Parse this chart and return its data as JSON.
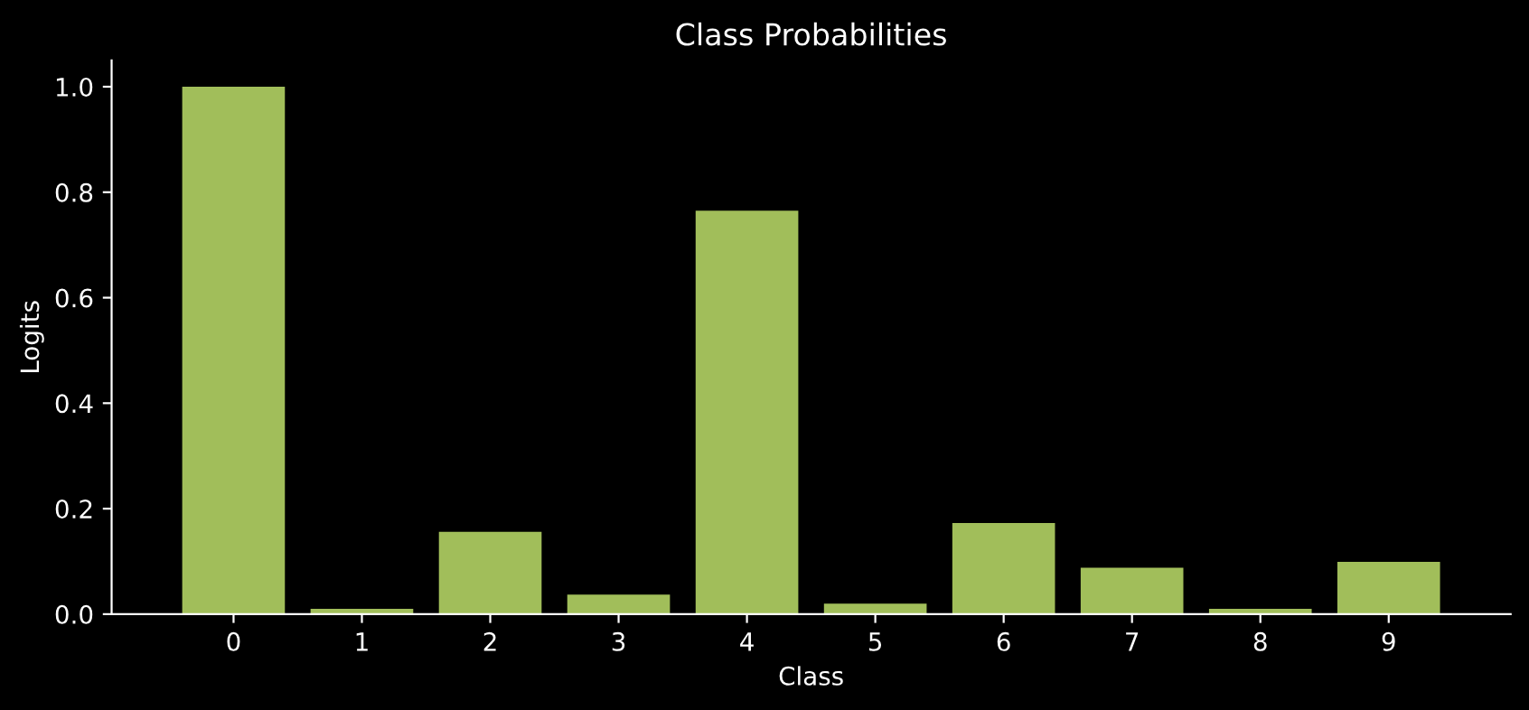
{
  "chart_data": {
    "type": "bar",
    "title": "Class Probabilities",
    "xlabel": "Class",
    "ylabel": "Logits",
    "categories": [
      "0",
      "1",
      "2",
      "3",
      "4",
      "5",
      "6",
      "7",
      "8",
      "9"
    ],
    "values": [
      1.0,
      0.01,
      0.156,
      0.037,
      0.765,
      0.02,
      0.173,
      0.088,
      0.01,
      0.099
    ],
    "color": "#a1be5a",
    "ylim": [
      0,
      1.05
    ],
    "yticks": [
      {
        "value": 0,
        "label": "0.0"
      },
      {
        "value": 0.2,
        "label": "0.2"
      },
      {
        "value": 0.4,
        "label": "0.4"
      },
      {
        "value": 0.6,
        "label": "0.6"
      },
      {
        "value": 0.8,
        "label": "0.8"
      },
      {
        "value": 1.0,
        "label": "1.0"
      }
    ],
    "grid": false
  }
}
